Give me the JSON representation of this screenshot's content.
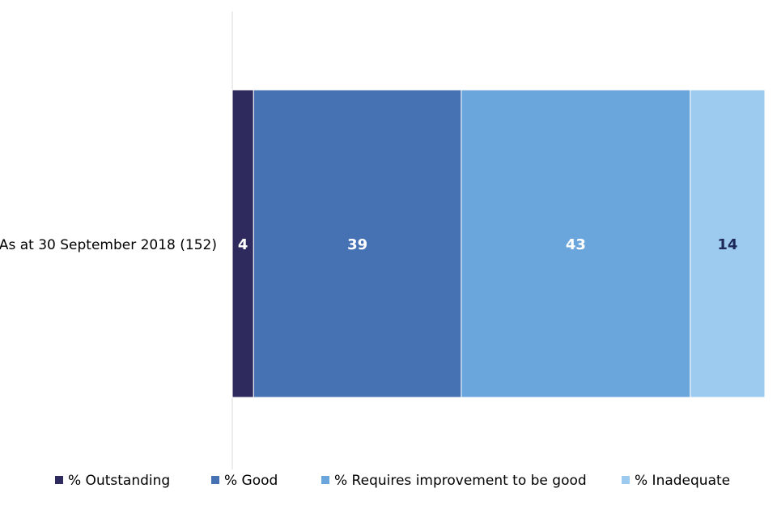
{
  "chart_data": {
    "type": "bar",
    "orientation": "horizontal",
    "stacked": true,
    "categories": [
      "As at 30 September 2018 (152)"
    ],
    "series": [
      {
        "name": "% Outstanding",
        "values": [
          4
        ],
        "color": "#2e2a5e",
        "label_color": "#ffffff"
      },
      {
        "name": "% Good",
        "values": [
          39
        ],
        "color": "#4672b4",
        "label_color": "#ffffff"
      },
      {
        "name": "% Requires improvement to be good",
        "values": [
          43
        ],
        "color": "#6aa6db",
        "label_color": "#ffffff"
      },
      {
        "name": "% Inadequate",
        "values": [
          14
        ],
        "color": "#9dcbf0",
        "label_color": "#1f2a5c"
      }
    ],
    "xlim": [
      0,
      100
    ],
    "grid": false,
    "legend_position": "bottom",
    "title": "",
    "xlabel": "",
    "ylabel": ""
  }
}
